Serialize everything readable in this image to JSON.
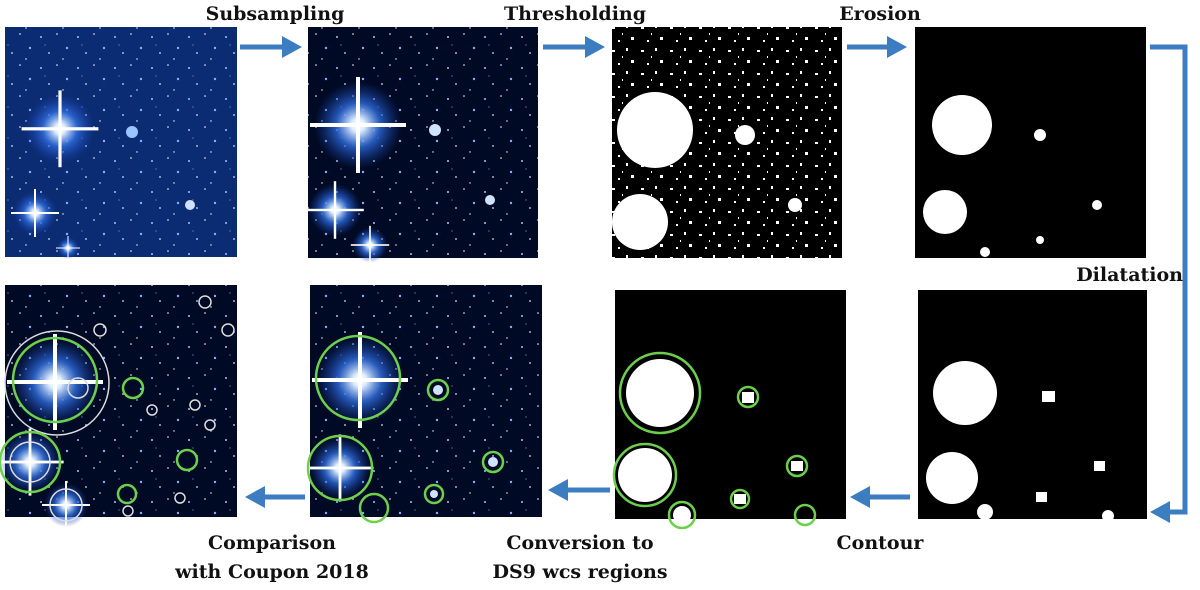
{
  "steps": [
    {
      "label": "Subsampling"
    },
    {
      "label": "Thresholding"
    },
    {
      "label": "Erosion"
    },
    {
      "label": "Dilatation"
    },
    {
      "label": "Contour"
    },
    {
      "lines": [
        "Conversion to",
        "DS9 wcs regions"
      ]
    },
    {
      "lines": [
        "Comparison",
        "with Coupon 2018"
      ]
    }
  ]
}
